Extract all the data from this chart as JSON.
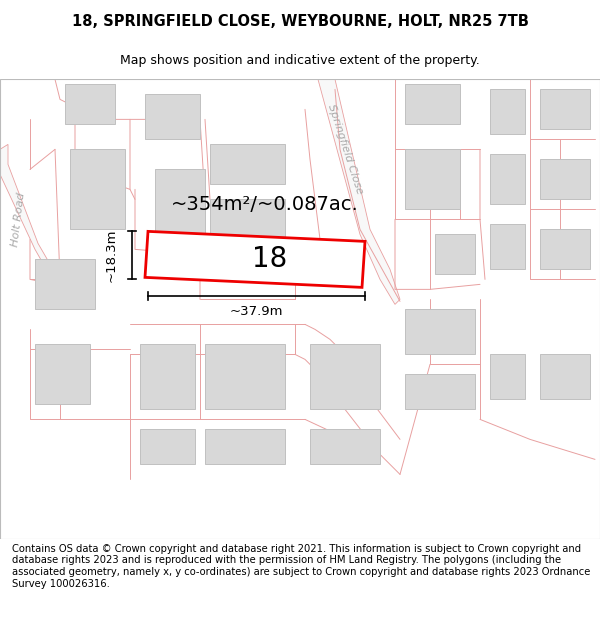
{
  "title_line1": "18, SPRINGFIELD CLOSE, WEYBOURNE, HOLT, NR25 7TB",
  "title_line2": "Map shows position and indicative extent of the property.",
  "footer_text": "Contains OS data © Crown copyright and database right 2021. This information is subject to Crown copyright and database rights 2023 and is reproduced with the permission of HM Land Registry. The polygons (including the associated geometry, namely x, y co-ordinates) are subject to Crown copyright and database rights 2023 Ordnance Survey 100026316.",
  "area_label": "~354m²/~0.087ac.",
  "width_label": "~37.9m",
  "height_label": "~18.3m",
  "plot_number": "18",
  "bg_color": "#ffffff",
  "building_fill": "#d8d8d8",
  "building_edge": "#c0c0c0",
  "road_line_color": "#e8a0a0",
  "road_bg": "#f0f0f0",
  "plot_outline_color": "#ee0000",
  "plot_fill": "#ffffff",
  "street_label1": "Springfield Close",
  "street_label2": "Holt Road",
  "map_border_color": "#bbbbbb",
  "title_fontsize": 10.5,
  "subtitle_fontsize": 9,
  "footer_fontsize": 7.2,
  "area_fontsize": 14,
  "dim_fontsize": 9.5,
  "number_fontsize": 20,
  "street_fontsize": 8
}
